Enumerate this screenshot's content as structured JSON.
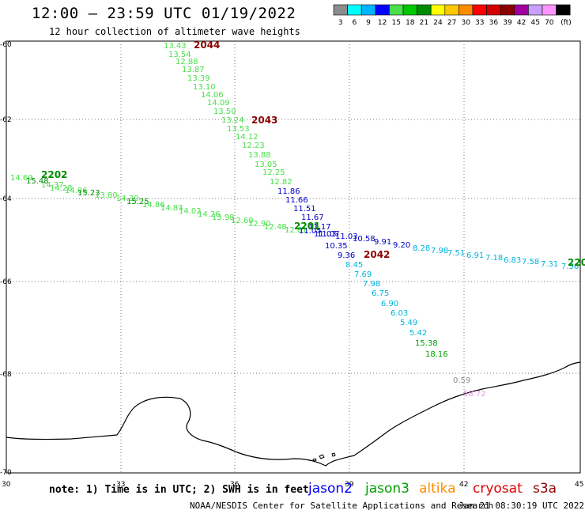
{
  "title": "12:00 – 23:59 UTC 01/19/2022",
  "subtitle": "12 hour collection of altimeter wave heights",
  "legend": {
    "unit": "(ft)",
    "bins": [
      {
        "label": "3",
        "color": "#8c8c8c"
      },
      {
        "label": "6",
        "color": "#00ffff"
      },
      {
        "label": "9",
        "color": "#00b4ff"
      },
      {
        "label": "12",
        "color": "#0000ff"
      },
      {
        "label": "15",
        "color": "#48e048"
      },
      {
        "label": "18",
        "color": "#00c800"
      },
      {
        "label": "21",
        "color": "#008c00"
      },
      {
        "label": "24",
        "color": "#ffff00"
      },
      {
        "label": "27",
        "color": "#ffc800"
      },
      {
        "label": "30",
        "color": "#ff8c00"
      },
      {
        "label": "33",
        "color": "#ff0000"
      },
      {
        "label": "36",
        "color": "#d20000"
      },
      {
        "label": "39",
        "color": "#8c0000"
      },
      {
        "label": "42",
        "color": "#a000a0"
      },
      {
        "label": "45",
        "color": "#c8a0ff"
      },
      {
        "label": "70",
        "color": "#ff96ff"
      },
      {
        "label": "",
        "color": "#000000"
      }
    ]
  },
  "axes": {
    "lat_labels": [
      "-60",
      "-62",
      "-64",
      "-66",
      "-68",
      "-70"
    ],
    "lon_labels": [
      "30",
      "33",
      "36",
      "39",
      "42",
      "45"
    ]
  },
  "passes": [
    {
      "label": "2044",
      "color": "#8c0000"
    },
    {
      "label": "2043",
      "color": "#8c0000"
    },
    {
      "label": "2202",
      "color": "#008c00"
    },
    {
      "label": "2201",
      "color": "#008c00"
    },
    {
      "label": "2042",
      "color": "#8c0000"
    },
    {
      "label": "220",
      "color": "#008c00"
    }
  ],
  "obs_a": [
    {
      "v": "13.43",
      "c": "#48e048"
    },
    {
      "v": "13.54",
      "c": "#48e048"
    },
    {
      "v": "12.88",
      "c": "#48e048"
    },
    {
      "v": "13.87",
      "c": "#48e048"
    },
    {
      "v": "13.39",
      "c": "#48e048"
    },
    {
      "v": "13.10",
      "c": "#48e048"
    },
    {
      "v": "14.06",
      "c": "#48e048"
    },
    {
      "v": "14.09",
      "c": "#48e048"
    },
    {
      "v": "13.50",
      "c": "#48e048"
    },
    {
      "v": "13.24",
      "c": "#48e048"
    },
    {
      "v": "13.53",
      "c": "#48e048"
    },
    {
      "v": "14.12",
      "c": "#48e048"
    },
    {
      "v": "12.23",
      "c": "#48e048"
    },
    {
      "v": "13.88",
      "c": "#48e048"
    },
    {
      "v": "13.05",
      "c": "#48e048"
    },
    {
      "v": "12.25",
      "c": "#48e048"
    },
    {
      "v": "12.82",
      "c": "#48e048"
    },
    {
      "v": "11.86",
      "c": "#0000c8"
    },
    {
      "v": "11.66",
      "c": "#0000c8"
    },
    {
      "v": "11.51",
      "c": "#0000c8"
    },
    {
      "v": "11.67",
      "c": "#0000c8"
    },
    {
      "v": "11.17",
      "c": "#0000c8"
    },
    {
      "v": "11.03",
      "c": "#0000c8"
    },
    {
      "v": "10.35",
      "c": "#0000c8"
    },
    {
      "v": "9.36",
      "c": "#0000c8"
    },
    {
      "v": "8.45",
      "c": "#00b4dc"
    },
    {
      "v": "7.69",
      "c": "#00b4dc"
    },
    {
      "v": "7.98",
      "c": "#00b4dc"
    },
    {
      "v": "6.75",
      "c": "#00b4dc"
    },
    {
      "v": "6.90",
      "c": "#00b4dc"
    },
    {
      "v": "6.03",
      "c": "#00b4dc"
    },
    {
      "v": "5.49",
      "c": "#00b4dc"
    },
    {
      "v": "5.42",
      "c": "#00b4dc"
    },
    {
      "v": "15.38",
      "c": "#00a000"
    },
    {
      "v": "18.16",
      "c": "#00a000"
    }
  ],
  "obs_b": [
    {
      "v": "14.69",
      "c": "#48e048"
    },
    {
      "v": "15.48",
      "c": "#008c00"
    },
    {
      "v": "14.37",
      "c": "#48e048"
    },
    {
      "v": "14.28",
      "c": "#48e048"
    },
    {
      "v": "14.06",
      "c": "#48e048"
    },
    {
      "v": "15.23",
      "c": "#008c00"
    },
    {
      "v": "13.80",
      "c": "#48e048"
    },
    {
      "v": "14.30",
      "c": "#48e048"
    },
    {
      "v": "15.25",
      "c": "#008c00"
    },
    {
      "v": "14.86",
      "c": "#48e048"
    },
    {
      "v": "14.83",
      "c": "#48e048"
    },
    {
      "v": "14.02",
      "c": "#48e048"
    },
    {
      "v": "14.26",
      "c": "#48e048"
    },
    {
      "v": "13.98",
      "c": "#48e048"
    },
    {
      "v": "12.69",
      "c": "#48e048"
    },
    {
      "v": "12.90",
      "c": "#48e048"
    },
    {
      "v": "12.48",
      "c": "#48e048"
    },
    {
      "v": "12.81",
      "c": "#48e048"
    },
    {
      "v": "11.05",
      "c": "#0000c8"
    },
    {
      "v": "11.07",
      "c": "#0000c8"
    },
    {
      "v": "11.03",
      "c": "#0000c8"
    },
    {
      "v": "10.58",
      "c": "#0000c8"
    },
    {
      "v": "9.91",
      "c": "#0000c8"
    },
    {
      "v": "9.20",
      "c": "#0000c8"
    },
    {
      "v": "8.28",
      "c": "#00b4dc"
    },
    {
      "v": "7.98",
      "c": "#00b4dc"
    },
    {
      "v": "7.51",
      "c": "#00b4dc"
    },
    {
      "v": "6.91",
      "c": "#00b4dc"
    },
    {
      "v": "7.18",
      "c": "#00b4dc"
    },
    {
      "v": "6.83",
      "c": "#00b4dc"
    },
    {
      "v": "7.58",
      "c": "#00b4dc"
    },
    {
      "v": "7.31",
      "c": "#00b4dc"
    },
    {
      "v": "7.56",
      "c": "#00b4dc"
    }
  ],
  "obs_c": [
    {
      "v": "0.59",
      "c": "#8c8c8c"
    },
    {
      "v": "58.72",
      "c": "#e696e6"
    }
  ],
  "note": "note: 1) Time is in UTC; 2) SWH is in feet",
  "satellites": [
    {
      "name": "jason2",
      "color": "#0000ff"
    },
    {
      "name": "jason3",
      "color": "#00a000"
    },
    {
      "name": "altika",
      "color": "#ff8c00"
    },
    {
      "name": "cryosat",
      "color": "#e00000"
    },
    {
      "name": "s3a",
      "color": "#8c0000"
    }
  ],
  "credit": "NOAA/NESDIS Center for Satellite Applications and Research",
  "timestamp": "Jan 21 08:30:19 UTC 2022"
}
